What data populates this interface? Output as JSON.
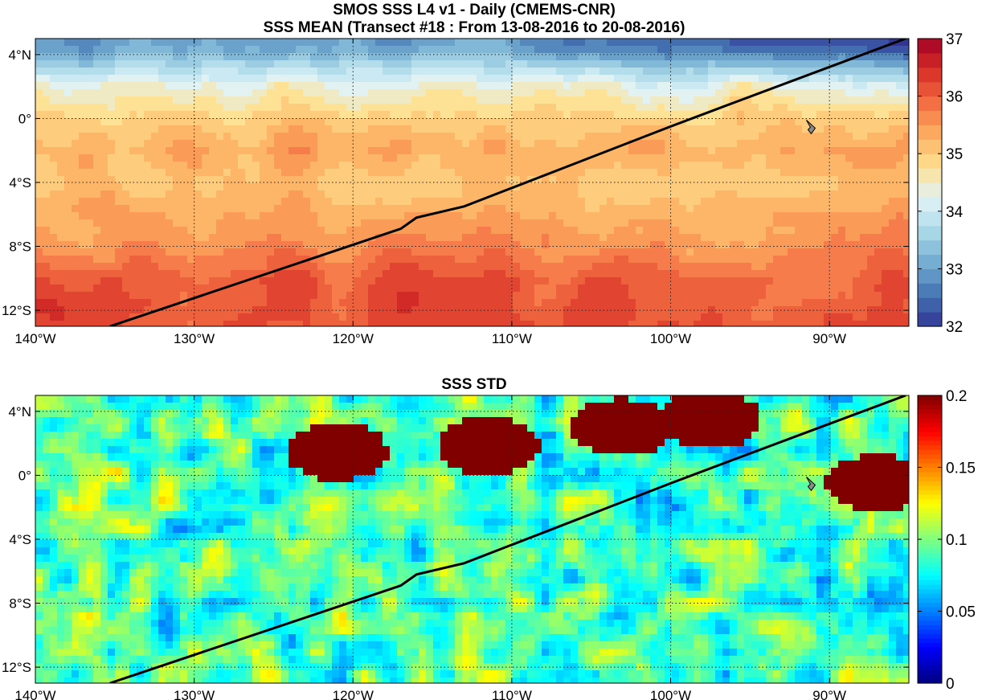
{
  "chart_data": [
    {
      "type": "heatmap",
      "title": "SMOS SSS L4 v1 - Daily (CMEMS-CNR)",
      "subtitle": "SSS MEAN (Transect #18 : From 13-08-2016 to 20-08-2016)",
      "xlabel": "",
      "ylabel": "",
      "xlim": [
        -140,
        -85
      ],
      "ylim": [
        -13,
        5
      ],
      "x_ticks": [
        {
          "value": -140,
          "label": "140°W"
        },
        {
          "value": -130,
          "label": "130°W"
        },
        {
          "value": -120,
          "label": "120°W"
        },
        {
          "value": -110,
          "label": "110°W"
        },
        {
          "value": -100,
          "label": "100°W"
        },
        {
          "value": -90,
          "label": "90°W"
        }
      ],
      "y_ticks": [
        {
          "value": 4,
          "label": "4°N"
        },
        {
          "value": 0,
          "label": "0°"
        },
        {
          "value": -4,
          "label": "4°S"
        },
        {
          "value": -8,
          "label": "8°S"
        },
        {
          "value": -12,
          "label": "12°S"
        }
      ],
      "grid": true,
      "colorbar": {
        "min": 32,
        "max": 37,
        "levels": 20,
        "ticks": [
          {
            "value": 32,
            "label": "32"
          },
          {
            "value": 33,
            "label": "33"
          },
          {
            "value": 34,
            "label": "34"
          },
          {
            "value": 35,
            "label": "35"
          },
          {
            "value": 36,
            "label": "36"
          },
          {
            "value": 37,
            "label": "37"
          }
        ],
        "colormap": "reversed-rdylbu"
      },
      "approx_field_by_latitude": [
        {
          "lat": 4.5,
          "value": 33.0
        },
        {
          "lat": 2.0,
          "value": 34.5
        },
        {
          "lat": 0.0,
          "value": 35.0
        },
        {
          "lat": -2.0,
          "value": 35.3
        },
        {
          "lat": -4.0,
          "value": 35.1
        },
        {
          "lat": -6.0,
          "value": 35.4
        },
        {
          "lat": -8.0,
          "value": 35.6
        },
        {
          "lat": -10.0,
          "value": 36.0
        },
        {
          "lat": -12.0,
          "value": 36.1
        }
      ],
      "transect": [
        [
          -135.3,
          -13
        ],
        [
          -117,
          -6.9
        ],
        [
          -116,
          -6.2
        ],
        [
          -113,
          -5.5
        ],
        [
          -100,
          -0.5
        ],
        [
          -96,
          1.0
        ],
        [
          -85.2,
          5
        ]
      ],
      "island_marker": {
        "lon": -91.2,
        "lat": -0.5
      }
    },
    {
      "type": "heatmap",
      "title": "SSS STD",
      "xlabel": "",
      "ylabel": "",
      "xlim": [
        -140,
        -85
      ],
      "ylim": [
        -13,
        5
      ],
      "x_ticks": [
        {
          "value": -140,
          "label": "140°W"
        },
        {
          "value": -130,
          "label": "130°W"
        },
        {
          "value": -120,
          "label": "120°W"
        },
        {
          "value": -110,
          "label": "110°W"
        },
        {
          "value": -100,
          "label": "100°W"
        },
        {
          "value": -90,
          "label": "90°W"
        }
      ],
      "y_ticks": [
        {
          "value": 4,
          "label": "4°N"
        },
        {
          "value": 0,
          "label": "0°"
        },
        {
          "value": -4,
          "label": "4°S"
        },
        {
          "value": -8,
          "label": "8°S"
        },
        {
          "value": -12,
          "label": "12°S"
        }
      ],
      "grid": true,
      "colorbar": {
        "min": 0,
        "max": 0.2,
        "ticks": [
          {
            "value": 0,
            "label": "0"
          },
          {
            "value": 0.05,
            "label": "0.05"
          },
          {
            "value": 0.1,
            "label": "0.1"
          },
          {
            "value": 0.15,
            "label": "0.15"
          },
          {
            "value": 0.2,
            "label": "0.2"
          }
        ],
        "colormap": "jet"
      },
      "high_variability_regions": [
        {
          "lon": -121,
          "lat": 1.5,
          "value": 0.2
        },
        {
          "lon": -111.5,
          "lat": 1.8,
          "value": 0.2
        },
        {
          "lon": -103,
          "lat": 3.0,
          "value": 0.2
        },
        {
          "lon": -97.5,
          "lat": 3.5,
          "value": 0.2
        },
        {
          "lon": -87,
          "lat": -0.5,
          "value": 0.2
        }
      ],
      "transect": [
        [
          -135.3,
          -13
        ],
        [
          -117,
          -6.9
        ],
        [
          -116,
          -6.2
        ],
        [
          -113,
          -5.5
        ],
        [
          -100,
          -0.5
        ],
        [
          -96,
          1.0
        ],
        [
          -85.2,
          5
        ]
      ],
      "island_marker": {
        "lon": -91.2,
        "lat": -0.5
      }
    }
  ]
}
